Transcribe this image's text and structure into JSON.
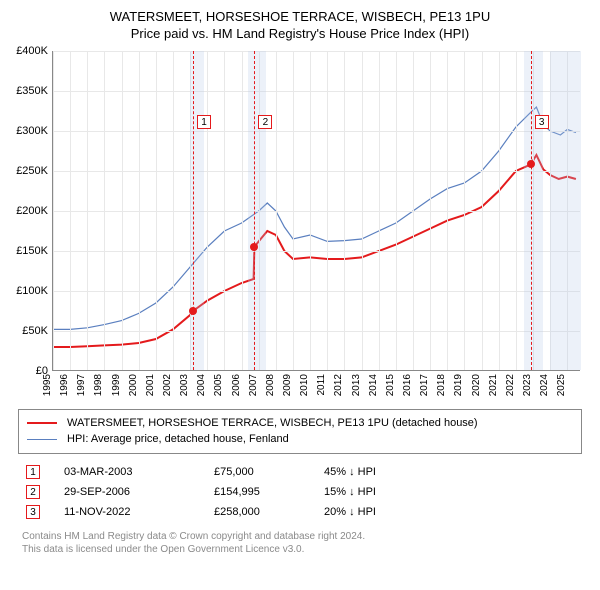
{
  "title": "WATERSMEET, HORSESHOE TERRACE, WISBECH, PE13 1PU",
  "subtitle": "Price paid vs. HM Land Registry's House Price Index (HPI)",
  "chart": {
    "type": "line",
    "xlim": [
      1995,
      2025.8
    ],
    "ylim": [
      0,
      400000
    ],
    "ytick_step": 50000,
    "ytick_labels": [
      "£0",
      "£50K",
      "£100K",
      "£150K",
      "£200K",
      "£250K",
      "£300K",
      "£350K",
      "£400K"
    ],
    "xticks": [
      1995,
      1996,
      1997,
      1998,
      1999,
      2000,
      2001,
      2002,
      2003,
      2004,
      2005,
      2006,
      2007,
      2008,
      2009,
      2010,
      2011,
      2012,
      2013,
      2014,
      2015,
      2016,
      2017,
      2018,
      2019,
      2020,
      2021,
      2022,
      2023,
      2024,
      2025
    ],
    "background_color": "#ffffff",
    "grid_color": "#e8e8e8",
    "axis_color": "#888888",
    "title_fontsize": 13,
    "label_fontsize": 11,
    "tick_fontsize": 10,
    "highlight_bands": [
      {
        "from": 2003.0,
        "to": 2003.8,
        "color": "rgba(180,200,230,0.25)"
      },
      {
        "from": 2006.4,
        "to": 2007.4,
        "color": "rgba(180,200,230,0.25)"
      },
      {
        "from": 2022.5,
        "to": 2023.6,
        "color": "rgba(180,200,230,0.25)"
      },
      {
        "from": 2024.0,
        "to": 2025.8,
        "color": "rgba(180,200,230,0.25)"
      }
    ],
    "sale_markers": [
      {
        "n": 1,
        "x": 2003.17,
        "label_y": 320000
      },
      {
        "n": 2,
        "x": 2006.75,
        "label_y": 320000
      },
      {
        "n": 3,
        "x": 2022.86,
        "label_y": 320000
      }
    ],
    "series": [
      {
        "name": "price_paid",
        "color": "#e41a1c",
        "line_width": 2,
        "points": [
          [
            1995.0,
            30000
          ],
          [
            1996.0,
            30000
          ],
          [
            1997.0,
            31000
          ],
          [
            1998.0,
            32000
          ],
          [
            1999.0,
            33000
          ],
          [
            2000.0,
            35000
          ],
          [
            2001.0,
            40000
          ],
          [
            2002.0,
            52000
          ],
          [
            2003.0,
            70000
          ],
          [
            2003.17,
            75000
          ],
          [
            2004.0,
            88000
          ],
          [
            2005.0,
            100000
          ],
          [
            2006.0,
            110000
          ],
          [
            2006.7,
            115000
          ],
          [
            2006.75,
            154995
          ],
          [
            2007.0,
            162000
          ],
          [
            2007.5,
            175000
          ],
          [
            2008.0,
            170000
          ],
          [
            2008.5,
            150000
          ],
          [
            2009.0,
            140000
          ],
          [
            2010.0,
            142000
          ],
          [
            2011.0,
            140000
          ],
          [
            2012.0,
            140000
          ],
          [
            2013.0,
            142000
          ],
          [
            2014.0,
            150000
          ],
          [
            2015.0,
            158000
          ],
          [
            2016.0,
            168000
          ],
          [
            2017.0,
            178000
          ],
          [
            2018.0,
            188000
          ],
          [
            2019.0,
            195000
          ],
          [
            2020.0,
            205000
          ],
          [
            2021.0,
            225000
          ],
          [
            2022.0,
            250000
          ],
          [
            2022.86,
            258000
          ],
          [
            2023.2,
            270000
          ],
          [
            2023.6,
            252000
          ],
          [
            2024.0,
            245000
          ],
          [
            2024.5,
            240000
          ],
          [
            2025.0,
            243000
          ],
          [
            2025.5,
            240000
          ]
        ],
        "dots": [
          [
            2003.17,
            75000
          ],
          [
            2006.75,
            154995
          ],
          [
            2022.86,
            258000
          ]
        ]
      },
      {
        "name": "hpi",
        "color": "#5a7fbf",
        "line_width": 1.2,
        "points": [
          [
            1995.0,
            52000
          ],
          [
            1996.0,
            52000
          ],
          [
            1997.0,
            54000
          ],
          [
            1998.0,
            58000
          ],
          [
            1999.0,
            63000
          ],
          [
            2000.0,
            72000
          ],
          [
            2001.0,
            85000
          ],
          [
            2002.0,
            105000
          ],
          [
            2003.0,
            130000
          ],
          [
            2004.0,
            155000
          ],
          [
            2005.0,
            175000
          ],
          [
            2006.0,
            185000
          ],
          [
            2007.0,
            200000
          ],
          [
            2007.5,
            210000
          ],
          [
            2008.0,
            200000
          ],
          [
            2008.5,
            180000
          ],
          [
            2009.0,
            165000
          ],
          [
            2010.0,
            170000
          ],
          [
            2011.0,
            162000
          ],
          [
            2012.0,
            163000
          ],
          [
            2013.0,
            165000
          ],
          [
            2014.0,
            175000
          ],
          [
            2015.0,
            185000
          ],
          [
            2016.0,
            200000
          ],
          [
            2017.0,
            215000
          ],
          [
            2018.0,
            228000
          ],
          [
            2019.0,
            235000
          ],
          [
            2020.0,
            250000
          ],
          [
            2021.0,
            275000
          ],
          [
            2022.0,
            305000
          ],
          [
            2022.8,
            322000
          ],
          [
            2023.2,
            330000
          ],
          [
            2023.6,
            308000
          ],
          [
            2024.0,
            300000
          ],
          [
            2024.6,
            295000
          ],
          [
            2025.0,
            302000
          ],
          [
            2025.5,
            298000
          ]
        ]
      }
    ]
  },
  "legend": [
    {
      "color": "#e41a1c",
      "width": 2,
      "label": "WATERSMEET, HORSESHOE TERRACE, WISBECH, PE13 1PU (detached house)"
    },
    {
      "color": "#5a7fbf",
      "width": 1,
      "label": "HPI: Average price, detached house, Fenland"
    }
  ],
  "transactions": [
    {
      "n": "1",
      "date": "03-MAR-2003",
      "price": "£75,000",
      "diff": "45% ↓ HPI"
    },
    {
      "n": "2",
      "date": "29-SEP-2006",
      "price": "£154,995",
      "diff": "15% ↓ HPI"
    },
    {
      "n": "3",
      "date": "11-NOV-2022",
      "price": "£258,000",
      "diff": "20% ↓ HPI"
    }
  ],
  "footer_line1": "Contains HM Land Registry data © Crown copyright and database right 2024.",
  "footer_line2": "This data is licensed under the Open Government Licence v3.0.",
  "colors": {
    "marker_border": "#e41a1c",
    "footer_text": "#8a8a8a"
  }
}
